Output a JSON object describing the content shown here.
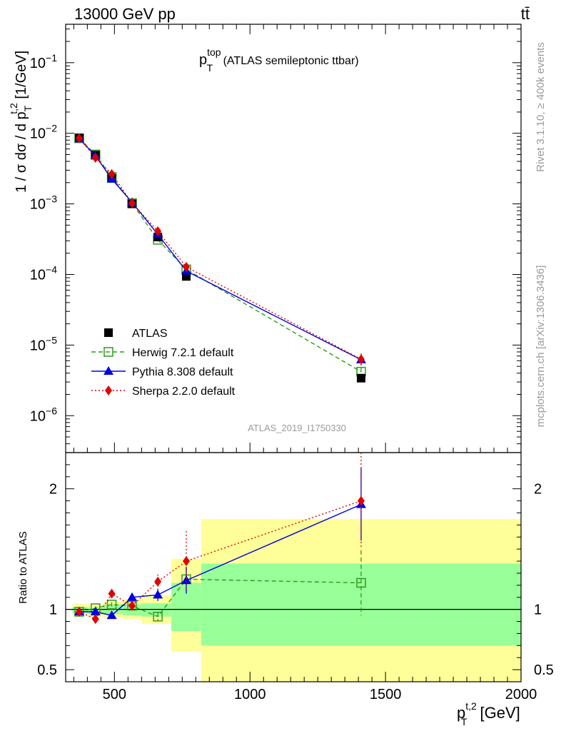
{
  "header": {
    "left": "13000 GeV pp",
    "right": "tt̄"
  },
  "plot_title": {
    "main": "p",
    "sup": "top",
    "sub": "T",
    "rest": " (ATLAS semileptonic ttbar)"
  },
  "side_labels": {
    "rivet": "Rivet 3.1.10, ≥ 400k events",
    "mcplots": "mcplots.cern.ch [arXiv:1306.3436]"
  },
  "watermark": "ATLAS_2019_I1750330",
  "colors": {
    "data": "#000000",
    "herwig": "#2e9a1e",
    "pythia": "#0000e0",
    "sherpa": "#e00000",
    "band_outer": "#ffff99",
    "band_inner": "#99ff99"
  },
  "chart_data": [
    {
      "type": "line",
      "panel": "main",
      "title": "p_T^top (ATLAS semileptonic ttbar)",
      "ylabel_text": "1 / σ dσ / d p",
      "ylabel_sub": "T",
      "ylabel_sup": "t,2",
      "ylabel_unit": " [1/GeV]",
      "yscale": "log",
      "ylim": [
        3e-07,
        0.35
      ],
      "xlim": [
        320,
        2000
      ],
      "y_ticks": [
        {
          "value": 1e-06,
          "base": "10",
          "exp": "−6"
        },
        {
          "value": 1e-05,
          "base": "10",
          "exp": "−5"
        },
        {
          "value": 0.0001,
          "base": "10",
          "exp": "−4"
        },
        {
          "value": 0.001,
          "base": "10",
          "exp": "−3"
        },
        {
          "value": 0.01,
          "base": "10",
          "exp": "−2"
        },
        {
          "value": 0.1,
          "base": "10",
          "exp": "−1"
        }
      ],
      "series": [
        {
          "name": "ATLAS",
          "style": "data",
          "x": [
            370,
            430,
            490,
            565,
            660,
            765,
            1410
          ],
          "y": [
            0.0086,
            0.0049,
            0.0023,
            0.001,
            0.00034,
            9.4e-05,
            3.4e-06
          ]
        },
        {
          "name": "Herwig 7.2.1 default",
          "style": "herwig",
          "x": [
            370,
            430,
            490,
            565,
            660,
            765,
            1410
          ],
          "y": [
            0.0085,
            0.005,
            0.0024,
            0.00102,
            0.00031,
            0.000118,
            4.2e-06
          ],
          "err": [
            0.0001,
            8e-05,
            5e-05,
            2e-05,
            1e-05,
            5e-06,
            6e-07
          ]
        },
        {
          "name": "Pythia 8.308 default",
          "style": "pythia",
          "x": [
            370,
            430,
            490,
            565,
            660,
            765,
            1410
          ],
          "y": [
            0.0084,
            0.0048,
            0.00225,
            0.00105,
            0.00037,
            0.000112,
            6.2e-06
          ],
          "err": [
            0.0001,
            8e-05,
            5e-05,
            2e-05,
            2e-05,
            6e-06,
            9e-07
          ]
        },
        {
          "name": "Sherpa 2.2.0 default",
          "style": "sherpa",
          "x": [
            370,
            430,
            490,
            565,
            660,
            765,
            1410
          ],
          "y": [
            0.0085,
            0.0045,
            0.00265,
            0.00103,
            0.00041,
            0.000128,
            6.3e-06
          ],
          "err": [
            0.0001,
            8e-05,
            6e-05,
            2e-05,
            3e-05,
            8e-06,
            1.3e-06
          ]
        }
      ]
    },
    {
      "type": "line",
      "panel": "ratio",
      "ylabel": "Ratio to ATLAS",
      "xlabel_text": "p",
      "xlabel_sub": "T",
      "xlabel_sup": "t,2",
      "xlabel_unit": " [GeV]",
      "ylim": [
        0.4,
        2.3
      ],
      "xlim": [
        320,
        2000
      ],
      "y_ticks": [
        {
          "value": 0.5,
          "label": "0.5"
        },
        {
          "value": 1,
          "label": "1"
        },
        {
          "value": 2,
          "label": "2"
        }
      ],
      "x_ticks": [
        {
          "value": 500,
          "label": "500"
        },
        {
          "value": 1000,
          "label": "1000"
        },
        {
          "value": 1500,
          "label": "1500"
        },
        {
          "value": 2000,
          "label": "2000"
        }
      ],
      "bands": [
        {
          "x0": 345,
          "x1": 400,
          "inner": [
            0.97,
            1.02
          ],
          "outer": [
            0.96,
            1.05
          ]
        },
        {
          "x0": 400,
          "x1": 460,
          "inner": [
            0.96,
            1.01
          ],
          "outer": [
            0.94,
            1.04
          ]
        },
        {
          "x0": 460,
          "x1": 530,
          "inner": [
            0.96,
            1.04
          ],
          "outer": [
            0.93,
            1.07
          ]
        },
        {
          "x0": 530,
          "x1": 600,
          "inner": [
            0.95,
            1.04
          ],
          "outer": [
            0.92,
            1.08
          ]
        },
        {
          "x0": 600,
          "x1": 710,
          "inner": [
            0.94,
            1.05
          ],
          "outer": [
            0.88,
            1.12
          ]
        },
        {
          "x0": 710,
          "x1": 820,
          "inner": [
            0.82,
            1.22
          ],
          "outer": [
            0.65,
            1.42
          ]
        },
        {
          "x0": 820,
          "x1": 2000,
          "inner": [
            0.7,
            1.38
          ],
          "outer": [
            0.34,
            1.75
          ]
        }
      ],
      "series": [
        {
          "name": "Herwig 7.2.1 default",
          "style": "herwig",
          "x": [
            370,
            430,
            490,
            565,
            660,
            765,
            1410
          ],
          "y": [
            0.98,
            1.01,
            1.04,
            1.03,
            0.94,
            1.25,
            1.22
          ],
          "err": [
            0.015,
            0.015,
            0.02,
            0.03,
            0.04,
            0.1,
            0.27
          ]
        },
        {
          "name": "Pythia 8.308 default",
          "style": "pythia",
          "x": [
            370,
            430,
            490,
            565,
            660,
            765,
            1410
          ],
          "y": [
            0.98,
            0.98,
            0.95,
            1.1,
            1.12,
            1.24,
            1.87
          ],
          "err": [
            0.015,
            0.02,
            0.025,
            0.03,
            0.05,
            0.11,
            0.3
          ]
        },
        {
          "name": "Sherpa 2.2.0 default",
          "style": "sherpa",
          "x": [
            370,
            430,
            490,
            565,
            660,
            765,
            1410
          ],
          "y": [
            0.98,
            0.92,
            1.13,
            1.03,
            1.23,
            1.4,
            1.9
          ],
          "err": [
            0.015,
            0.02,
            0.03,
            0.03,
            0.06,
            0.25,
            0.4
          ]
        }
      ]
    }
  ]
}
